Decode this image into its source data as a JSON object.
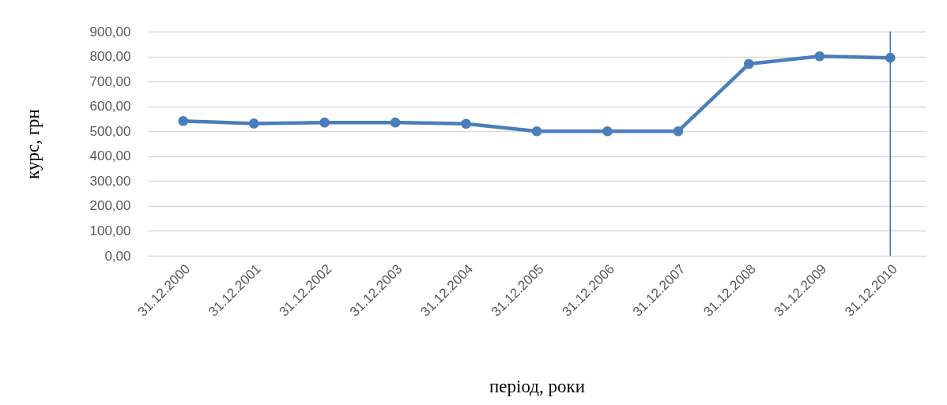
{
  "chart_data": {
    "type": "line",
    "xlabel": "період, роки",
    "ylabel": "курс, грн",
    "categories": [
      "31.12.2000",
      "31.12.2001",
      "31.12.2002",
      "31.12.2003",
      "31.12.2004",
      "31.12.2005",
      "31.12.2006",
      "31.12.2007",
      "31.12.2008",
      "31.12.2009",
      "31.12.2010"
    ],
    "series": [
      {
        "color": "#4a7ebb",
        "values": [
          541,
          531,
          535,
          535,
          530,
          500,
          500,
          500,
          770,
          801,
          795
        ]
      }
    ],
    "ylim": [
      0,
      900
    ],
    "yticks": [
      {
        "value": 0,
        "label": "0,00"
      },
      {
        "value": 100,
        "label": "100,00"
      },
      {
        "value": 200,
        "label": "200,00"
      },
      {
        "value": 300,
        "label": "300,00"
      },
      {
        "value": 400,
        "label": "400,00"
      },
      {
        "value": 500,
        "label": "500,00"
      },
      {
        "value": 600,
        "label": "600,00"
      },
      {
        "value": 700,
        "label": "700,00"
      },
      {
        "value": 800,
        "label": "800,00"
      },
      {
        "value": 900,
        "label": "900,00"
      }
    ],
    "ref_lines": [
      {
        "axis": "x",
        "value": "31.12.2010",
        "color": "#4472c4"
      }
    ],
    "grid": "y",
    "marker": "circle",
    "line_style": "solid"
  }
}
